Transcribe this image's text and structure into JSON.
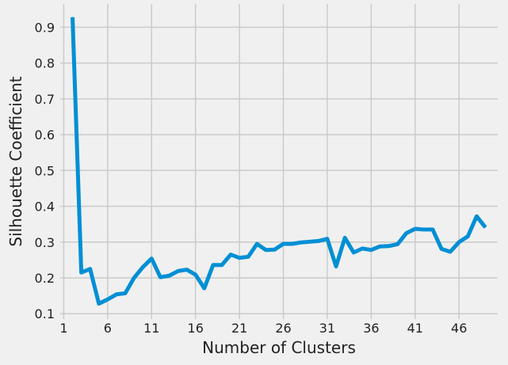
{
  "chart_data": {
    "type": "line",
    "title": "",
    "xlabel": "Number of Clusters",
    "ylabel": "Silhouette Coefficient",
    "xlim": [
      0.6,
      50.4
    ],
    "ylim": [
      0.085,
      0.965
    ],
    "xticks": [
      1,
      6,
      11,
      16,
      21,
      26,
      31,
      36,
      41,
      46
    ],
    "yticks": [
      0.1,
      0.2,
      0.3,
      0.4,
      0.5,
      0.6,
      0.7,
      0.8,
      0.9
    ],
    "ytick_labels": [
      "0.1",
      "0.2",
      "0.3",
      "0.4",
      "0.5",
      "0.6",
      "0.7",
      "0.8",
      "0.9"
    ],
    "grid": true,
    "line_color": "#008fd5",
    "grid_color": "#cbcbcb",
    "background": "#f0f0f0",
    "x": [
      2,
      3,
      4,
      5,
      6,
      7,
      8,
      9,
      10,
      11,
      12,
      13,
      14,
      15,
      16,
      17,
      18,
      19,
      20,
      21,
      22,
      23,
      24,
      25,
      26,
      27,
      28,
      29,
      30,
      31,
      32,
      33,
      34,
      35,
      36,
      37,
      38,
      39,
      40,
      41,
      42,
      43,
      44,
      45,
      46,
      47,
      48,
      49
    ],
    "y": [
      0.928,
      0.215,
      0.225,
      0.128,
      0.14,
      0.154,
      0.157,
      0.2,
      0.23,
      0.254,
      0.202,
      0.206,
      0.219,
      0.223,
      0.209,
      0.171,
      0.236,
      0.236,
      0.265,
      0.256,
      0.259,
      0.295,
      0.278,
      0.279,
      0.295,
      0.295,
      0.299,
      0.301,
      0.303,
      0.309,
      0.232,
      0.312,
      0.271,
      0.282,
      0.278,
      0.288,
      0.289,
      0.294,
      0.325,
      0.337,
      0.335,
      0.335,
      0.281,
      0.273,
      0.3,
      0.316,
      0.372,
      0.341
    ]
  }
}
